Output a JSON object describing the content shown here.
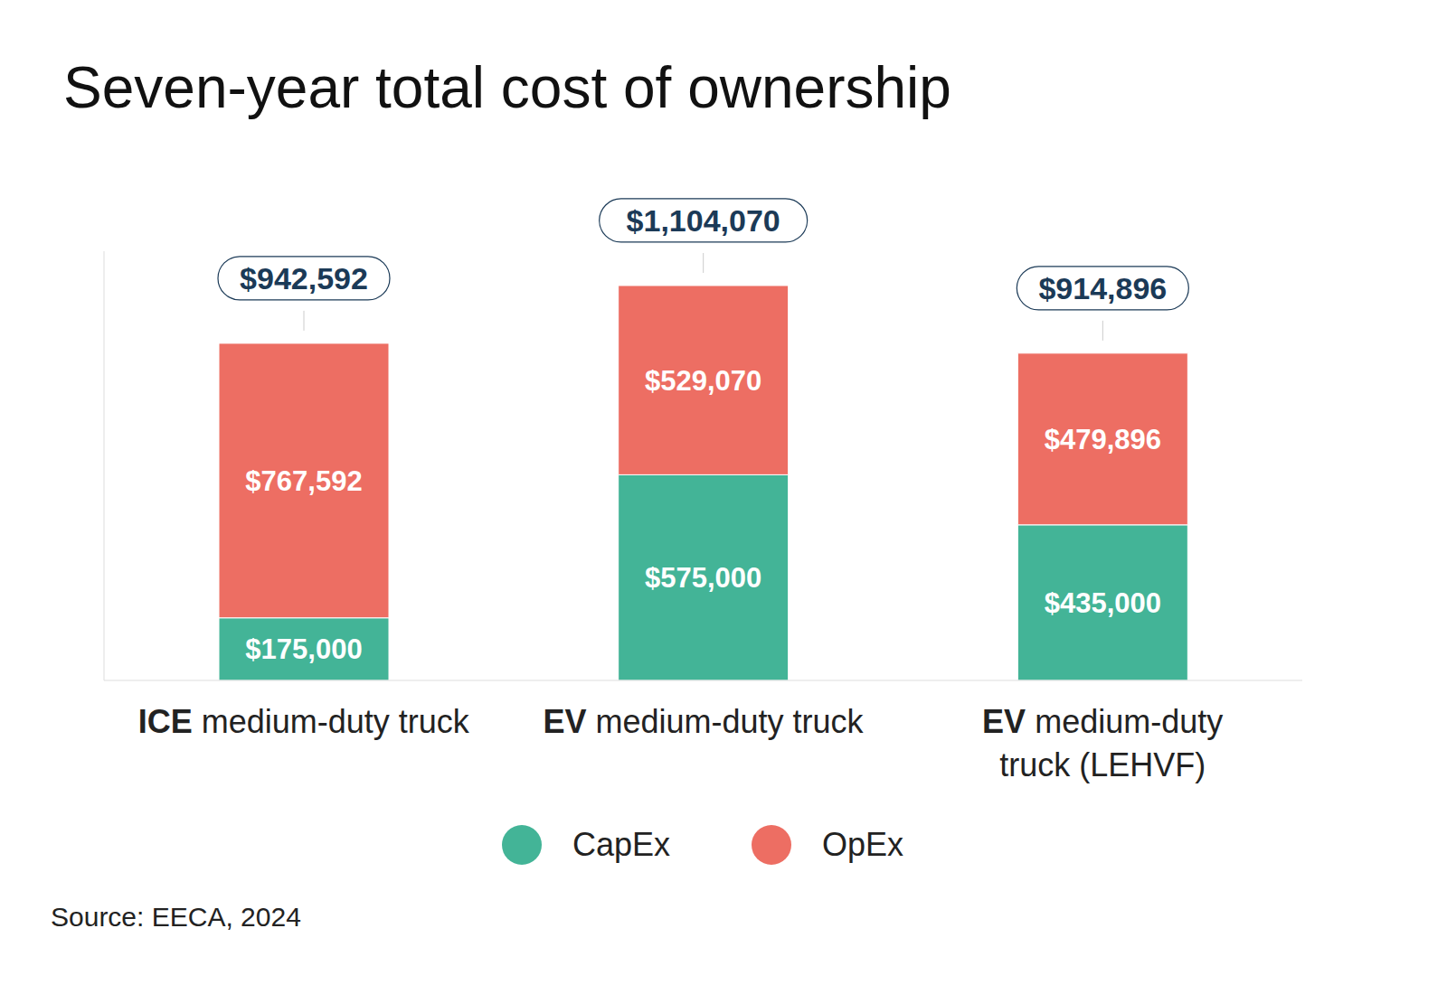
{
  "chart_data": {
    "type": "bar",
    "title": "Seven-year total cost of ownership",
    "source": "Source: EECA, 2024",
    "categories": [
      "ICE medium-duty truck",
      "EV medium-duty truck",
      "EV medium-duty truck (LEHVF)"
    ],
    "series": [
      {
        "name": "CapEx",
        "color": "#43b497",
        "values": [
          175000,
          575000,
          435000
        ],
        "value_labels": [
          "$175,000",
          "$575,000",
          "$435,000"
        ]
      },
      {
        "name": "OpEx",
        "color": "#ed6e63",
        "values": [
          767592,
          529070,
          479896
        ],
        "value_labels": [
          "$767,592",
          "$529,070",
          "$479,896"
        ]
      }
    ],
    "totals": {
      "values": [
        942592,
        1104070,
        914896
      ],
      "value_labels": [
        "$942,592",
        "$1,104,070",
        "$914,896"
      ]
    },
    "ylim": [
      0,
      1200000
    ],
    "yticks": [
      0
    ],
    "stacked": true,
    "data_labels": true,
    "tick_labels": "x",
    "legend": "bottom"
  }
}
